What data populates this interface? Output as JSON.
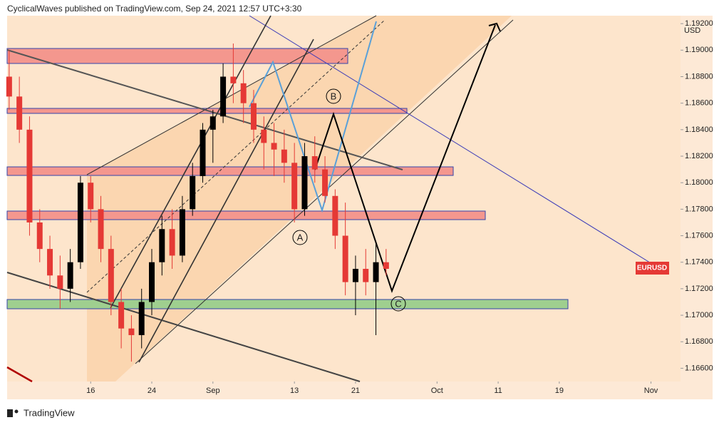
{
  "header": {
    "caption": "CyclicalWaves published on TradingView.com, Sep 24, 2021 12:57 UTC+3:30"
  },
  "footer": {
    "brand": "TradingView"
  },
  "chart_data": {
    "type": "candlestick",
    "currency": "USD",
    "annotations": [
      "A",
      "B",
      "C"
    ],
    "up_color": "#000000",
    "down_color": "#e53935",
    "x": [
      0,
      1,
      2,
      3,
      4,
      5,
      6,
      7,
      8,
      9,
      10,
      11,
      12,
      13,
      14,
      15,
      16,
      17,
      18,
      19,
      20,
      21,
      22,
      23,
      24,
      25,
      26,
      27,
      28,
      29,
      30,
      31,
      32,
      33,
      34,
      35,
      36,
      37
    ],
    "series": [
      {
        "name": "EURUSD",
        "color": "#e53935",
        "open": [
          1.188,
          1.1865,
          1.184,
          1.177,
          1.175,
          1.173,
          1.172,
          1.174,
          1.18,
          1.178,
          1.175,
          1.171,
          1.169,
          1.1685,
          1.171,
          1.174,
          1.1765,
          1.1745,
          1.178,
          1.1805,
          1.184,
          1.185,
          1.188,
          1.1875,
          1.186,
          1.184,
          1.183,
          1.1825,
          1.1815,
          1.178,
          1.182,
          1.181,
          1.179,
          1.176,
          1.1725,
          1.1735,
          1.1725,
          1.174
        ],
        "high": [
          1.19,
          1.188,
          1.185,
          1.178,
          1.176,
          1.1745,
          1.175,
          1.1805,
          1.1805,
          1.179,
          1.176,
          1.172,
          1.17,
          1.172,
          1.175,
          1.1775,
          1.178,
          1.179,
          1.1815,
          1.1845,
          1.1855,
          1.189,
          1.1905,
          1.1885,
          1.187,
          1.185,
          1.1845,
          1.184,
          1.183,
          1.183,
          1.1835,
          1.182,
          1.1795,
          1.1785,
          1.1745,
          1.175,
          1.1755,
          1.175
        ],
        "low": [
          1.1855,
          1.183,
          1.176,
          1.174,
          1.172,
          1.1705,
          1.171,
          1.1735,
          1.177,
          1.174,
          1.17,
          1.1675,
          1.1665,
          1.1675,
          1.17,
          1.173,
          1.1735,
          1.174,
          1.1775,
          1.18,
          1.1815,
          1.1845,
          1.186,
          1.1845,
          1.183,
          1.181,
          1.1805,
          1.18,
          1.177,
          1.1775,
          1.18,
          1.1785,
          1.175,
          1.1715,
          1.17,
          1.1715,
          1.1685,
          1.173
        ],
        "close": [
          1.1865,
          1.184,
          1.177,
          1.175,
          1.173,
          1.172,
          1.174,
          1.18,
          1.178,
          1.175,
          1.171,
          1.169,
          1.1685,
          1.171,
          1.174,
          1.1765,
          1.1745,
          1.178,
          1.1805,
          1.184,
          1.185,
          1.188,
          1.1875,
          1.186,
          1.184,
          1.183,
          1.1825,
          1.1815,
          1.178,
          1.182,
          1.181,
          1.179,
          1.176,
          1.1725,
          1.1735,
          1.1725,
          1.174,
          1.1735
        ]
      }
    ],
    "xlim": [
      -0.2,
      65.9
    ],
    "xticks": [
      {
        "value": 8,
        "label": "16"
      },
      {
        "value": 14,
        "label": "24"
      },
      {
        "value": 20,
        "label": "Sep"
      },
      {
        "value": 28,
        "label": "13"
      },
      {
        "value": 34,
        "label": "21"
      },
      {
        "value": 42,
        "label": "Oct"
      },
      {
        "value": 48,
        "label": "11"
      },
      {
        "value": 54,
        "label": "19"
      },
      {
        "value": 63,
        "label": "Nov"
      }
    ],
    "ylim": [
      1.165,
      1.1926
    ],
    "yticks": [
      {
        "value": 1.166,
        "label": "1.16600"
      },
      {
        "value": 1.168,
        "label": "1.16800"
      },
      {
        "value": 1.17,
        "label": "1.17000"
      },
      {
        "value": 1.172,
        "label": "1.17200"
      },
      {
        "value": 1.174,
        "label": "1.17400"
      },
      {
        "value": 1.176,
        "label": "1.17600"
      },
      {
        "value": 1.178,
        "label": "1.17800"
      },
      {
        "value": 1.18,
        "label": "1.18000"
      },
      {
        "value": 1.182,
        "label": "1.18200"
      },
      {
        "value": 1.184,
        "label": "1.18400"
      },
      {
        "value": 1.186,
        "label": "1.18600"
      },
      {
        "value": 1.188,
        "label": "1.18800"
      },
      {
        "value": 1.19,
        "label": "1.19000"
      },
      {
        "value": 1.192,
        "label": "1.19200"
      }
    ],
    "grid": false
  }
}
